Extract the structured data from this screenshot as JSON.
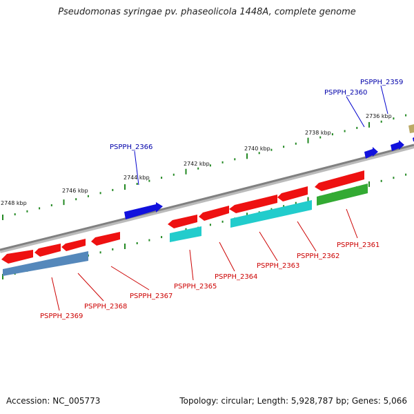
{
  "title": "Pseudomonas syringae pv. phaseolicola 1448A, complete genome",
  "footer": {
    "accession": "Accession: NC_005773",
    "topology": "Topology: circular; Length: 5,928,787 bp; Genes: 5,066"
  },
  "ruler_labels": [
    "2736 kbp",
    "2738 kbp",
    "2740 kbp",
    "2742 kbp",
    "2744 kbp",
    "2746 kbp",
    "2748 kbp"
  ],
  "gene_labels": {
    "PSPPH_2359": "PSPPH_2359",
    "PSPPH_2360": "PSPPH_2360",
    "PSPPH_2361": "PSPPH_2361",
    "PSPPH_2362": "PSPPH_2362",
    "PSPPH_2363": "PSPPH_2363",
    "PSPPH_2364": "PSPPH_2364",
    "PSPPH_2365": "PSPPH_2365",
    "PSPPH_2366": "PSPPH_2366",
    "PSPPH_2367": "PSPPH_2367",
    "PSPPH_2368": "PSPPH_2368",
    "PSPPH_2369": "PSPPH_2369"
  },
  "colors": {
    "backbone": "#808080",
    "gene_red": "#ee1111",
    "gene_blue": "#1111dd",
    "cds_cyan": "#22cccc",
    "cds_steel": "#5588bb",
    "cds_green": "#33aa33",
    "cds_khaki": "#bbaa66",
    "tick": "#228822",
    "label_red": "#cc0000",
    "label_blue": "#0000aa"
  }
}
